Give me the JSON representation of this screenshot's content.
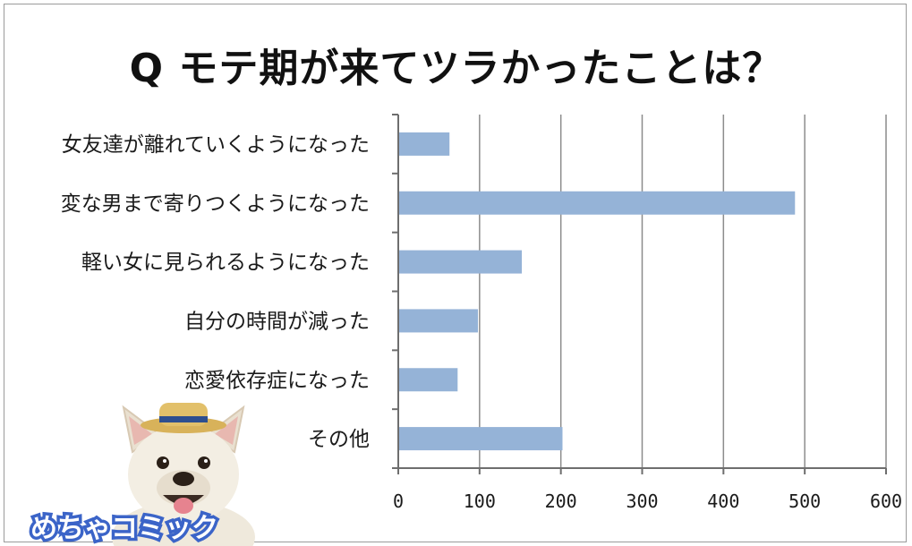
{
  "chart_data": {
    "type": "bar",
    "orientation": "horizontal",
    "title": "Q モテ期が来てツラかったことは？",
    "categories": [
      "女友達が離れていくようになった",
      "変な男まで寄りつくようになった",
      "軽い女に見られるようになった",
      "自分の時間が減った",
      "恋愛依存症になった",
      "その他"
    ],
    "values": [
      63,
      488,
      152,
      98,
      73,
      202
    ],
    "xlim": [
      0,
      600
    ],
    "xticks": [
      0,
      100,
      200,
      300,
      400,
      500,
      600
    ],
    "xlabel": "",
    "ylabel": "",
    "grid": "vertical",
    "bar_color": "#95b3d7"
  },
  "branding": {
    "logo_text": "めちゃコミック",
    "mascot": "french-bulldog-with-straw-hat"
  }
}
